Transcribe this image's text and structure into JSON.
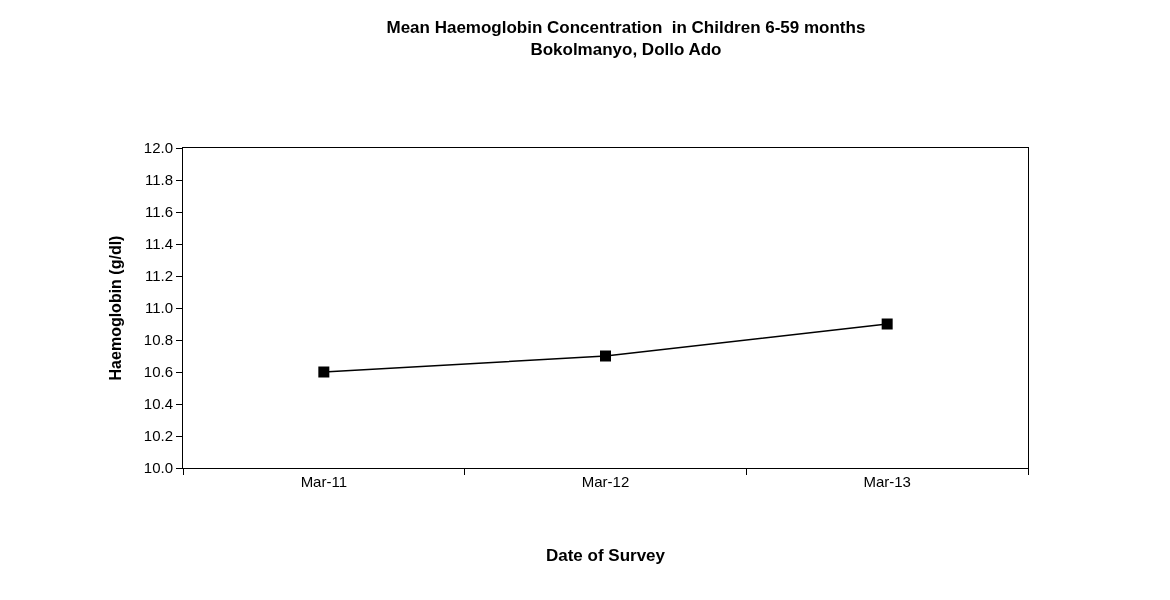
{
  "chart_data": {
    "type": "line",
    "title": "Mean Haemoglobin Concentration  in Children 6-59 months\nBokolmanyo, Dollo Ado",
    "xlabel": "Date of Survey",
    "ylabel": "Haemoglobin (g/dl)",
    "categories": [
      "Mar-11",
      "Mar-12",
      "Mar-13"
    ],
    "series": [
      {
        "color": "#000000",
        "values": [
          10.6,
          10.7,
          10.9
        ]
      }
    ],
    "ylim": [
      10.0,
      12.0
    ],
    "yticks": [
      {
        "value": 10.0,
        "label": "10.0"
      },
      {
        "value": 10.2,
        "label": "10.2"
      },
      {
        "value": 10.4,
        "label": "10.4"
      },
      {
        "value": 10.6,
        "label": "10.6"
      },
      {
        "value": 10.8,
        "label": "10.8"
      },
      {
        "value": 11.0,
        "label": "11.0"
      },
      {
        "value": 11.2,
        "label": "11.2"
      },
      {
        "value": 11.4,
        "label": "11.4"
      },
      {
        "value": 11.6,
        "label": "11.6"
      },
      {
        "value": 11.8,
        "label": "11.8"
      },
      {
        "value": 12.0,
        "label": "12.0"
      }
    ],
    "grid": false,
    "marker": "square",
    "line_style": "solid"
  }
}
